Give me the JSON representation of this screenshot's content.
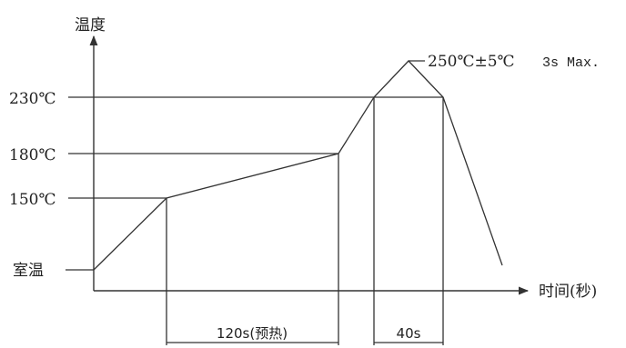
{
  "axes": {
    "y_title": "温度",
    "x_title": "时间(秒)"
  },
  "temperature_levels": {
    "room": "室温",
    "t150": "150℃",
    "t180": "180℃",
    "t230": "230℃"
  },
  "peak_annotation": {
    "value": "250℃±5℃",
    "duration": "3s Max."
  },
  "intervals": {
    "preheat": "120s(预热)",
    "above_230": "40s"
  }
}
